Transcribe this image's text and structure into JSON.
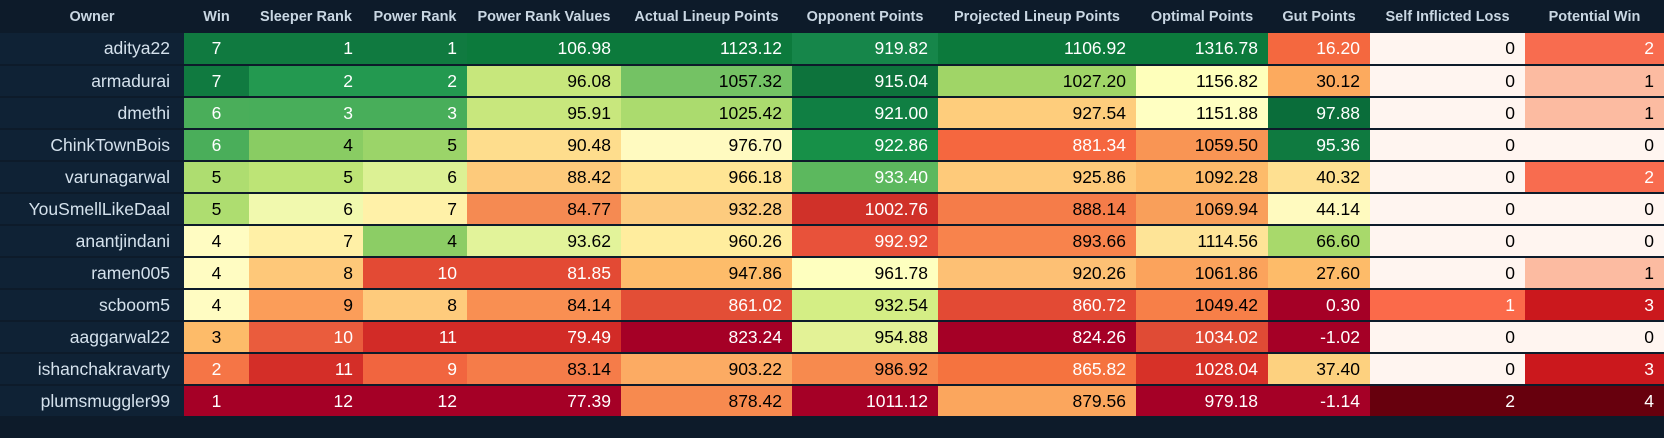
{
  "columns": [
    "Owner",
    "Win",
    "Sleeper Rank",
    "Power Rank",
    "Power Rank Values",
    "Actual Lineup Points",
    "Opponent Points",
    "Projected Lineup Points",
    "Optimal Points",
    "Gut Points",
    "Self Inflicted Loss",
    "Potential Win"
  ],
  "rows": [
    {
      "owner": "aditya22",
      "values": [
        "7",
        "1",
        "1",
        "106.98",
        "1123.12",
        "919.82",
        "1106.92",
        "1316.78",
        "16.20",
        "0",
        "2"
      ]
    },
    {
      "owner": "armadurai",
      "values": [
        "7",
        "2",
        "2",
        "96.08",
        "1057.32",
        "915.04",
        "1027.20",
        "1156.82",
        "30.12",
        "0",
        "1"
      ]
    },
    {
      "owner": "dmethi",
      "values": [
        "6",
        "3",
        "3",
        "95.91",
        "1025.42",
        "921.00",
        "927.54",
        "1151.88",
        "97.88",
        "0",
        "1"
      ]
    },
    {
      "owner": "ChinkTownBois",
      "values": [
        "6",
        "4",
        "5",
        "90.48",
        "976.70",
        "922.86",
        "881.34",
        "1059.50",
        "95.36",
        "0",
        "0"
      ]
    },
    {
      "owner": "varunagarwal",
      "values": [
        "5",
        "5",
        "6",
        "88.42",
        "966.18",
        "933.40",
        "925.86",
        "1092.28",
        "40.32",
        "0",
        "2"
      ]
    },
    {
      "owner": "YouSmellLikeDaal",
      "values": [
        "5",
        "6",
        "7",
        "84.77",
        "932.28",
        "1002.76",
        "888.14",
        "1069.94",
        "44.14",
        "0",
        "0"
      ]
    },
    {
      "owner": "anantjindani",
      "values": [
        "4",
        "7",
        "4",
        "93.62",
        "960.26",
        "992.92",
        "893.66",
        "1114.56",
        "66.60",
        "0",
        "0"
      ]
    },
    {
      "owner": "ramen005",
      "values": [
        "4",
        "8",
        "10",
        "81.85",
        "947.86",
        "961.78",
        "920.26",
        "1061.86",
        "27.60",
        "0",
        "1"
      ]
    },
    {
      "owner": "scboom5",
      "values": [
        "4",
        "9",
        "8",
        "84.14",
        "861.02",
        "932.54",
        "860.72",
        "1049.42",
        "0.30",
        "1",
        "3"
      ]
    },
    {
      "owner": "aaggarwal22",
      "values": [
        "3",
        "10",
        "11",
        "79.49",
        "823.24",
        "954.88",
        "824.26",
        "1034.02",
        "-1.02",
        "0",
        "0"
      ]
    },
    {
      "owner": "ishanchakravarty",
      "values": [
        "2",
        "11",
        "9",
        "83.14",
        "903.22",
        "986.92",
        "865.82",
        "1028.04",
        "37.40",
        "0",
        "3"
      ]
    },
    {
      "owner": "plumsmuggler99",
      "values": [
        "1",
        "12",
        "12",
        "77.39",
        "878.42",
        "1011.12",
        "879.56",
        "979.18",
        "-1.14",
        "2",
        "4"
      ]
    }
  ],
  "colors": [
    [
      "#107a40",
      "#107a40",
      "#107a40",
      "#0c7a3c",
      "#0c7a3c",
      "#16864a",
      "#0c7a3c",
      "#0c7a3c",
      "#f4683f",
      "#fff5f0",
      "#f86c4f"
    ],
    [
      "#107a40",
      "#239950",
      "#239950",
      "#c7e77c",
      "#74c264",
      "#0d733c",
      "#a0d567",
      "#feffbb",
      "#fcaa5e",
      "#fff5f0",
      "#fcbba1"
    ],
    [
      "#4aae5a",
      "#48ae5a",
      "#48ae5a",
      "#c8e77d",
      "#abdb6e",
      "#107f43",
      "#fecd7c",
      "#ffffc2",
      "#0a6d3a",
      "#fff5f0",
      "#fcbba1"
    ],
    [
      "#4aae5a",
      "#89cc63",
      "#9bd469",
      "#fedd8d",
      "#fffac0",
      "#179048",
      "#f5673f",
      "#f99554",
      "#0f7a40",
      "#fff5f0",
      "#fff5f0"
    ],
    [
      "#aedd70",
      "#bde476",
      "#dcf194",
      "#fdca7b",
      "#ffe594",
      "#5cb85e",
      "#feca7a",
      "#fdbb6a",
      "#fee091",
      "#fff5f0",
      "#f86c4f"
    ],
    [
      "#aedd70",
      "#f1f9ae",
      "#fff1a8",
      "#f58a52",
      "#fdcb7e",
      "#d03129",
      "#f57c49",
      "#f99f5a",
      "#fffabf",
      "#fff5f0",
      "#fff5f0"
    ],
    [
      "#fffcc2",
      "#fff0a6",
      "#8ccd65",
      "#e2f39a",
      "#ffed9e",
      "#e8523a",
      "#f8834c",
      "#fee497",
      "#a8d96b",
      "#fff5f0",
      "#fff5f0"
    ],
    [
      "#fffcc2",
      "#fec879",
      "#e34a34",
      "#e34a34",
      "#fdbc6a",
      "#feffbf",
      "#fdc074",
      "#fba35c",
      "#fdbb69",
      "#fff5f0",
      "#fcbba1"
    ],
    [
      "#fffcc2",
      "#fb9d59",
      "#fecb7c",
      "#f98f52",
      "#e34e36",
      "#d4ee85",
      "#e34a34",
      "#f77f48",
      "#a50026",
      "#fb6a4a",
      "#cb181d"
    ],
    [
      "#fdbb69",
      "#ea5c3d",
      "#d22b27",
      "#d22b27",
      "#a50026",
      "#e3f296",
      "#a50026",
      "#e04b35",
      "#a50026",
      "#fff5f0",
      "#fff5f0"
    ],
    [
      "#f57546",
      "#d42e28",
      "#f1653f",
      "#f57c49",
      "#fcab63",
      "#f78a4e",
      "#f5733f",
      "#d73128",
      "#fdd17f",
      "#fff5f0",
      "#cb181d"
    ],
    [
      "#a50026",
      "#a50026",
      "#a50026",
      "#a50026",
      "#f78a4f",
      "#a50026",
      "#fba65d",
      "#a50026",
      "#a50026",
      "#67000d",
      "#67000d"
    ]
  ]
}
